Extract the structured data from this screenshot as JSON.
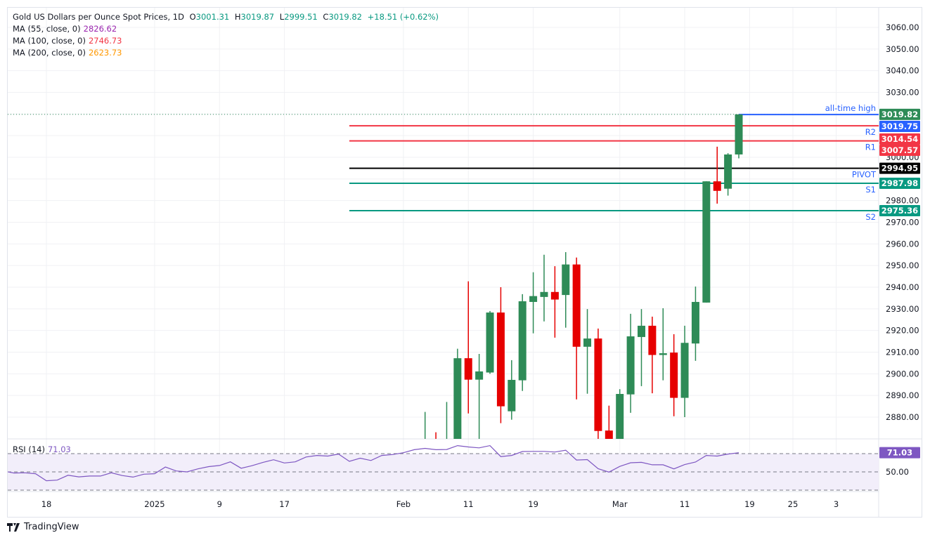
{
  "header": {
    "symbol": "Gold US Dollars per Ounce Spot Prices, 1D",
    "open_label": "O",
    "open": "3001.31",
    "high_label": "H",
    "high": "3019.87",
    "low_label": "L",
    "low": "2999.51",
    "close_label": "C",
    "close": "3019.82",
    "change": "+18.51 (+0.62%)"
  },
  "indicators": [
    {
      "label": "MA (55, close, 0)",
      "value": "2826.62",
      "color": "#9c27b0"
    },
    {
      "label": "MA (100, close, 0)",
      "value": "2746.73",
      "color": "#f23645"
    },
    {
      "label": "MA (200, close, 0)",
      "value": "2623.73",
      "color": "#ff9800"
    }
  ],
  "colors": {
    "up": "#2e8b57",
    "down": "#e60000",
    "rsi": "#7e57c2",
    "rsi_band": "#f2eefa"
  },
  "chart_data": {
    "type": "candlestick",
    "title": "Gold US Dollars per Ounce Spot Prices, 1D",
    "ylim": [
      2870,
      3065
    ],
    "y_ticks": [
      "3060.00",
      "3050.00",
      "3040.00",
      "3030.00",
      "3000.00",
      "2980.00",
      "2970.00",
      "2960.00",
      "2950.00",
      "2940.00",
      "2930.00",
      "2920.00",
      "2910.00",
      "2900.00",
      "2890.00",
      "2880.00"
    ],
    "x_ticks": [
      {
        "label": "18",
        "date": "2024-12-18"
      },
      {
        "label": "2025",
        "date": "2025-01-01"
      },
      {
        "label": "9",
        "date": "2025-01-09"
      },
      {
        "label": "17",
        "date": "2025-01-17"
      },
      {
        "label": "Feb",
        "date": "2025-02-03"
      },
      {
        "label": "11",
        "date": "2025-02-11"
      },
      {
        "label": "19",
        "date": "2025-02-19"
      },
      {
        "label": "Mar",
        "date": "2025-03-03"
      },
      {
        "label": "11",
        "date": "2025-03-11"
      },
      {
        "label": "19",
        "date": "2025-03-19"
      },
      {
        "label": "25",
        "date": "2025-03-25"
      },
      {
        "label": "3",
        "date": "2025-03-31"
      }
    ],
    "grid": true,
    "candles": [
      {
        "date": "2025-02-05",
        "dir": "up",
        "o": null,
        "h": 2882.4,
        "l": null,
        "c": null
      },
      {
        "date": "2025-02-06",
        "dir": "down",
        "o": null,
        "h": 2873.0,
        "l": null,
        "c": null
      },
      {
        "date": "2025-02-07",
        "dir": "up",
        "o": null,
        "h": 2887.0,
        "l": null,
        "c": null
      },
      {
        "date": "2025-02-10",
        "dir": "up",
        "o": null,
        "h": 2911.6,
        "l": null,
        "c": 2907.2
      },
      {
        "date": "2025-02-11",
        "dir": "down",
        "o": 2907.2,
        "h": 2942.7,
        "l": 2881.7,
        "c": 2897.3
      },
      {
        "date": "2025-02-12",
        "dir": "up",
        "o": 2897.3,
        "h": 2909.2,
        "l": null,
        "c": 2901.1
      },
      {
        "date": "2025-02-13",
        "dir": "up",
        "o": 2900.6,
        "h": 2929.0,
        "l": 2900.0,
        "c": 2928.3
      },
      {
        "date": "2025-02-14",
        "dir": "down",
        "o": 2928.3,
        "h": 2940.0,
        "l": 2877.2,
        "c": 2885.0
      },
      {
        "date": "2025-02-17",
        "dir": "up",
        "o": 2882.7,
        "h": 2906.3,
        "l": 2878.8,
        "c": 2897.2
      },
      {
        "date": "2025-02-18",
        "dir": "up",
        "o": 2897.0,
        "h": 2936.8,
        "l": 2892.1,
        "c": 2933.5
      },
      {
        "date": "2025-02-19",
        "dir": "up",
        "o": 2933.2,
        "h": 2946.9,
        "l": 2918.7,
        "c": 2935.9
      },
      {
        "date": "2025-02-20",
        "dir": "up",
        "o": 2935.5,
        "h": 2955.0,
        "l": 2924.2,
        "c": 2937.8
      },
      {
        "date": "2025-02-21",
        "dir": "down",
        "o": 2937.8,
        "h": 2949.7,
        "l": 2916.7,
        "c": 2934.3
      },
      {
        "date": "2025-02-24",
        "dir": "up",
        "o": 2936.4,
        "h": 2956.2,
        "l": 2921.3,
        "c": 2950.5
      },
      {
        "date": "2025-02-25",
        "dir": "down",
        "o": 2950.5,
        "h": 2953.7,
        "l": 2888.2,
        "c": 2912.5
      },
      {
        "date": "2025-02-26",
        "dir": "up",
        "o": 2912.5,
        "h": 2929.9,
        "l": 2890.8,
        "c": 2916.3
      },
      {
        "date": "2025-02-27",
        "dir": "down",
        "o": 2916.3,
        "h": 2920.9,
        "l": null,
        "c": 2873.6
      },
      {
        "date": "2025-02-28",
        "dir": "down",
        "o": 2873.8,
        "h": 2885.3,
        "l": null,
        "c": null
      },
      {
        "date": "2025-03-03",
        "dir": "up",
        "o": null,
        "h": 2892.9,
        "l": null,
        "c": 2890.7
      },
      {
        "date": "2025-03-04",
        "dir": "up",
        "o": 2890.5,
        "h": 2927.7,
        "l": 2882.0,
        "c": 2917.3
      },
      {
        "date": "2025-03-05",
        "dir": "up",
        "o": 2917.0,
        "h": 2929.9,
        "l": 2894.3,
        "c": 2922.2
      },
      {
        "date": "2025-03-06",
        "dir": "down",
        "o": 2922.2,
        "h": 2926.4,
        "l": 2891.0,
        "c": 2908.7
      },
      {
        "date": "2025-03-07",
        "dir": "up",
        "o": 2908.7,
        "h": 2930.3,
        "l": 2897.0,
        "c": 2909.5
      },
      {
        "date": "2025-03-10",
        "dir": "down",
        "o": 2909.8,
        "h": 2918.3,
        "l": 2880.4,
        "c": 2888.9
      },
      {
        "date": "2025-03-11",
        "dir": "up",
        "o": 2888.9,
        "h": 2922.2,
        "l": 2880.0,
        "c": 2914.3
      },
      {
        "date": "2025-03-12",
        "dir": "up",
        "o": 2914.0,
        "h": 2940.3,
        "l": 2906.0,
        "c": 2933.2
      },
      {
        "date": "2025-03-13",
        "dir": "up",
        "o": 2932.9,
        "h": 2988.9,
        "l": 2932.9,
        "c": 2988.9
      },
      {
        "date": "2025-03-14",
        "dir": "down",
        "o": 2988.9,
        "h": 3004.9,
        "l": 2978.6,
        "c": 2984.5
      },
      {
        "date": "2025-03-17",
        "dir": "up",
        "o": 2985.5,
        "h": 3001.9,
        "l": 2982.3,
        "c": 3001.3
      },
      {
        "date": "2025-03-18",
        "dir": "up",
        "o": 3001.31,
        "h": 3019.87,
        "l": 2999.51,
        "c": 3019.82
      }
    ],
    "levels": [
      {
        "name": "all-time high",
        "value": 3019.75,
        "label": "3019.75",
        "color": "#2962ff",
        "from": "2025-03-18"
      },
      {
        "name": "R2",
        "value": 3014.54,
        "label": "3014.54",
        "color": "#f23645",
        "from": "2025-01-27"
      },
      {
        "name": "R1",
        "value": 3007.57,
        "label": "3007.57",
        "color": "#f23645",
        "from": "2025-01-27"
      },
      {
        "name": "PIVOT",
        "value": 2994.95,
        "label": "2994.95",
        "color": "#000000",
        "from": "2025-01-27"
      },
      {
        "name": "S1",
        "value": 2987.98,
        "label": "2987.98",
        "color": "#089981",
        "from": "2025-01-27"
      },
      {
        "name": "S2",
        "value": 2975.36,
        "label": "2975.36",
        "color": "#089981",
        "from": "2025-01-27"
      }
    ],
    "last_price": {
      "value": 3019.82,
      "label": "3019.82",
      "color": "#2e8b57"
    },
    "rsi": {
      "label": "RSI (14)",
      "value": "71.03",
      "ylim": [
        20,
        80
      ],
      "bands": [
        30,
        50,
        70
      ],
      "y_ticks": [
        "50.00"
      ],
      "values": [
        51,
        48.8,
        49,
        48,
        40.3,
        41,
        46.3,
        44.5,
        45.5,
        45.5,
        49,
        46,
        44.3,
        47.5,
        48,
        55.3,
        51,
        50,
        53.3,
        55.8,
        57,
        61,
        54,
        56.8,
        60.3,
        63.3,
        59.8,
        61,
        66.3,
        68,
        67.3,
        69.5,
        61.5,
        65,
        62.5,
        68,
        69,
        71,
        74.3,
        75.8,
        74.3,
        74.5,
        78.8,
        77.3,
        76.3,
        78.8,
        66.8,
        68,
        72.3,
        72.5,
        72.5,
        71.8,
        73.8,
        63,
        63.5,
        53.5,
        49.8,
        56,
        60,
        60.5,
        57.8,
        57.8,
        53.3,
        58,
        60.8,
        68,
        67.3,
        69.5,
        71.03
      ]
    }
  },
  "footer": {
    "brand": "TradingView"
  }
}
